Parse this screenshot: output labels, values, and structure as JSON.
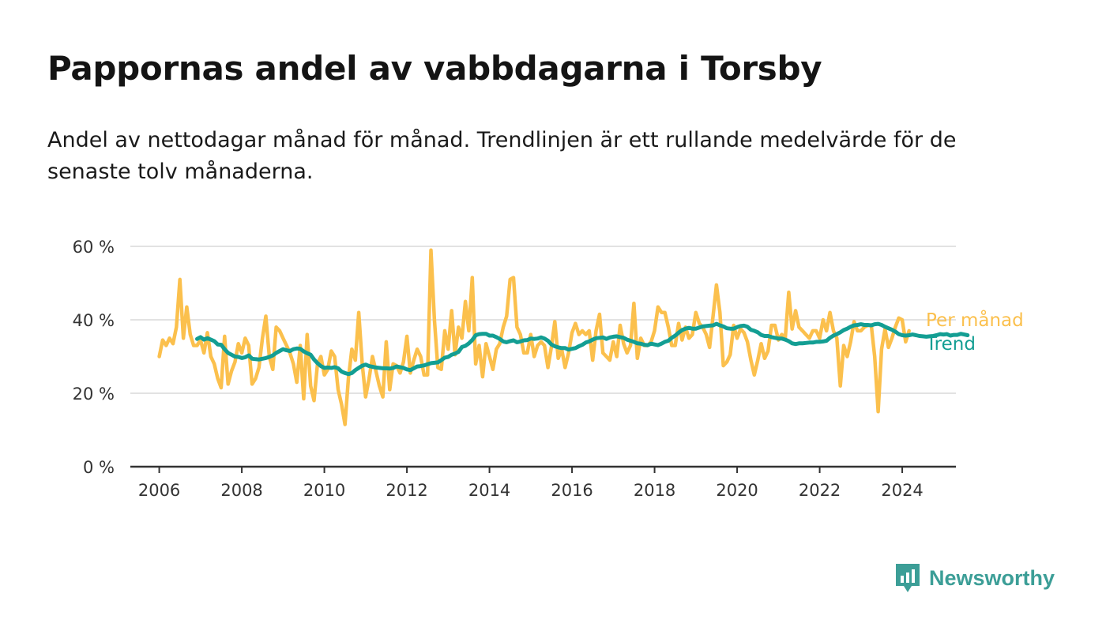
{
  "header": {
    "title": "Pappornas andel av vabbdagarna i Torsby",
    "subtitle": "Andel av nettodagar månad för månad. Trendlinjen är ett rullande medelvärde för de senaste tolv månaderna."
  },
  "brand": {
    "name": "Newsworthy",
    "icon": "newsworthy-logo-icon",
    "color": "#3c9e97"
  },
  "chart_data": {
    "type": "line",
    "title": "Pappornas andel av vabbdagarna i Torsby",
    "xlabel": "",
    "ylabel": "",
    "xlim": [
      2005.3,
      2025.3
    ],
    "ylim": [
      0,
      60
    ],
    "grid": true,
    "x_ticks": [
      2006,
      2008,
      2010,
      2012,
      2014,
      2016,
      2018,
      2020,
      2022,
      2024
    ],
    "x_tick_labels": [
      "2006",
      "2008",
      "2010",
      "2012",
      "2014",
      "2016",
      "2018",
      "2020",
      "2022",
      "2024"
    ],
    "y_ticks": [
      0,
      20,
      40,
      60
    ],
    "y_tick_labels": [
      "0 %",
      "20 %",
      "40 %",
      "60 %"
    ],
    "legend": "inline-right",
    "series": [
      {
        "name": "Per månad",
        "color": "#fbc04d",
        "x_start": 2006.0,
        "x_step": 0.08333,
        "values": [
          30,
          34.5,
          33,
          35,
          33.5,
          38,
          51,
          35,
          43.5,
          36,
          33,
          33,
          34.5,
          31,
          36.5,
          30,
          28,
          24,
          21.5,
          35.5,
          22.5,
          26,
          28.5,
          33.5,
          31,
          35,
          33,
          22.5,
          24,
          27,
          35,
          41,
          30,
          26.5,
          38,
          37,
          35,
          33,
          31,
          28,
          23,
          33,
          18.5,
          36,
          22,
          18,
          28,
          30,
          25,
          26.5,
          31.5,
          30,
          21,
          17,
          11.5,
          24,
          32,
          29,
          42,
          28,
          19,
          24,
          30,
          26,
          22,
          19,
          34,
          21,
          28,
          27.5,
          25.5,
          28.5,
          35.5,
          25.5,
          29,
          32,
          30,
          25,
          25,
          59,
          40,
          27,
          26.5,
          37,
          32,
          42.5,
          30.5,
          38,
          35,
          45,
          37,
          51.5,
          28,
          33,
          24.5,
          33.5,
          30,
          26.5,
          32,
          33.5,
          38,
          41,
          51,
          51.5,
          38,
          36,
          31,
          31,
          36,
          30,
          33,
          34,
          33,
          27,
          32.5,
          39.5,
          29.5,
          32,
          27,
          31,
          36.5,
          39,
          36,
          37,
          36,
          37,
          29,
          37,
          41.5,
          31,
          30,
          29,
          34,
          30,
          38.5,
          33.5,
          31,
          33,
          44.5,
          29.5,
          35,
          33,
          33,
          34,
          37,
          43.5,
          42,
          42,
          38,
          33,
          33,
          39,
          34.5,
          38,
          35,
          36,
          42,
          39,
          38,
          36,
          32.5,
          41,
          49.5,
          42,
          27.5,
          28.5,
          30.5,
          38.5,
          35,
          37.5,
          36.5,
          34,
          29,
          25,
          29,
          33.5,
          29.5,
          31.5,
          38.5,
          38.5,
          34.5,
          36,
          35,
          47.5,
          37.5,
          42.5,
          38,
          37,
          36,
          35,
          37,
          37,
          35,
          40,
          37,
          42,
          37,
          35,
          22,
          33,
          30,
          34,
          39.5,
          37,
          37,
          38,
          38.5,
          38.5,
          30,
          15,
          32,
          37.5,
          32.5,
          35,
          38,
          40.5,
          40,
          34,
          37
        ]
      },
      {
        "name": "Trend",
        "color": "#139e93",
        "x_start": 2006.917,
        "x_step": 0.08333,
        "values": [
          34.8,
          35.3,
          34.6,
          35,
          34.6,
          34.2,
          33.3,
          33.2,
          32,
          31,
          30.5,
          30,
          29.9,
          29.6,
          29.8,
          30.3,
          29.4,
          29.3,
          29.2,
          29.4,
          29.6,
          29.9,
          30.3,
          31,
          31.5,
          32,
          31.7,
          31.5,
          32,
          32.2,
          32.1,
          31.4,
          30.9,
          30.5,
          29.2,
          28.2,
          27.4,
          26.9,
          27,
          26.9,
          27.1,
          26.8,
          25.9,
          25.5,
          25.2,
          25.5,
          26.3,
          26.9,
          27.5,
          27.8,
          27.4,
          27.2,
          27,
          26.9,
          26.8,
          26.8,
          26.7,
          26.9,
          27.3,
          27.1,
          26.9,
          26.5,
          26.3,
          26.8,
          27.3,
          27.4,
          27.6,
          27.9,
          28.2,
          28.3,
          28.4,
          29,
          29.7,
          29.9,
          30.5,
          30.8,
          31.3,
          32.6,
          32.9,
          33.6,
          34.5,
          35.8,
          36.1,
          36.2,
          36.2,
          35.7,
          35.7,
          35.3,
          34.8,
          34.1,
          33.9,
          34.2,
          34.4,
          33.9,
          34.1,
          34.4,
          34.5,
          34.9,
          34.8,
          34.9,
          35.2,
          34.9,
          34.3,
          33.3,
          32.8,
          32.5,
          32.3,
          32.3,
          31.9,
          32.1,
          32.3,
          32.8,
          33.2,
          33.8,
          34.1,
          34.6,
          35,
          35.1,
          35.2,
          34.8,
          35.2,
          35.4,
          35.5,
          35.3,
          35.1,
          34.6,
          34.3,
          34,
          33.6,
          33.5,
          33.2,
          33.1,
          33.5,
          33.3,
          33.1,
          33.5,
          34,
          34.3,
          35.1,
          35.7,
          36.5,
          37.2,
          37.6,
          37.8,
          37.6,
          37.6,
          37.9,
          38.2,
          38.3,
          38.4,
          38.5,
          38.9,
          38.5,
          38.2,
          37.7,
          37.6,
          37.6,
          38,
          38.3,
          38.4,
          38.1,
          37.3,
          37,
          36.6,
          35.9,
          35.6,
          35.6,
          35.3,
          35.1,
          34.9,
          34.9,
          34.6,
          34.2,
          33.6,
          33.4,
          33.6,
          33.6,
          33.7,
          33.8,
          33.8,
          34,
          34,
          34.1,
          34.3,
          35.1,
          35.7,
          36.1,
          36.6,
          37.2,
          37.6,
          38.1,
          38.5,
          38.6,
          38.8,
          38.6,
          38.6,
          38.5,
          38.8,
          38.9,
          38.6,
          38.1,
          37.7,
          37.3,
          36.8,
          36.1,
          35.8,
          35.7,
          35.8,
          36,
          35.8,
          35.6,
          35.5,
          35.4,
          35.5,
          35.6,
          35.8,
          36.1,
          36,
          36.1,
          35.7,
          35.9,
          35.9,
          36.2,
          36,
          35.8
        ]
      }
    ]
  }
}
